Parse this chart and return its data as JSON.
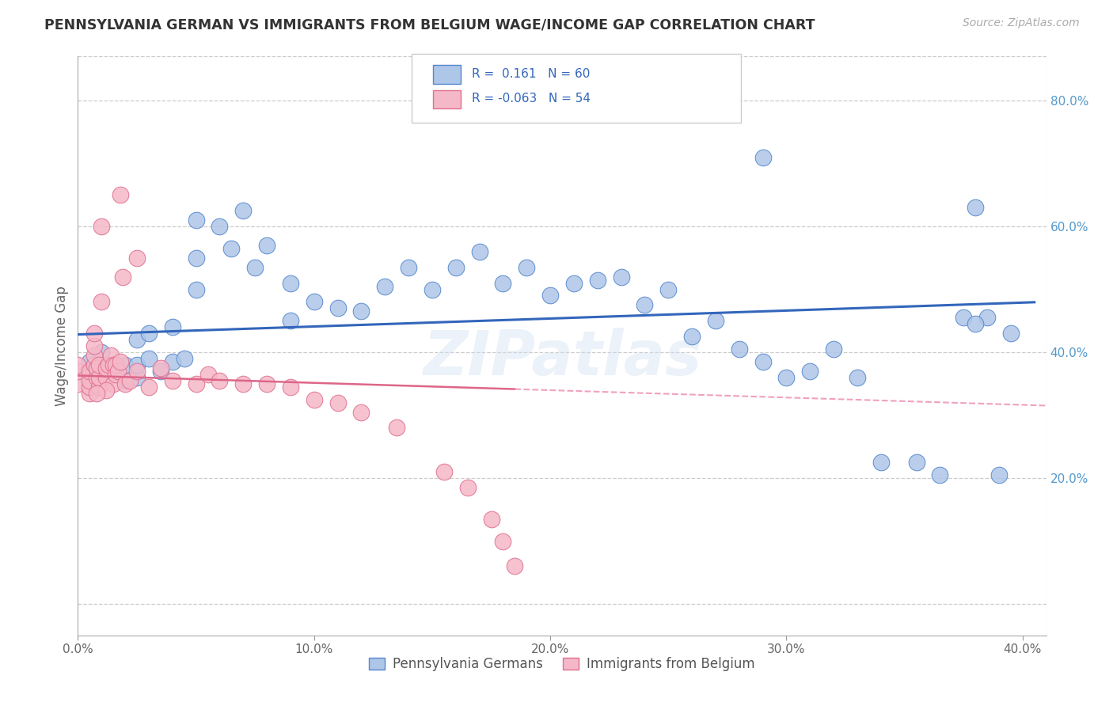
{
  "title": "PENNSYLVANIA GERMAN VS IMMIGRANTS FROM BELGIUM WAGE/INCOME GAP CORRELATION CHART",
  "source": "Source: ZipAtlas.com",
  "ylabel": "Wage/Income Gap",
  "xlim": [
    0.0,
    0.41
  ],
  "ylim": [
    -0.05,
    0.87
  ],
  "xticks": [
    0.0,
    0.1,
    0.2,
    0.3,
    0.4
  ],
  "xtick_labels": [
    "0.0%",
    "10.0%",
    "20.0%",
    "30.0%",
    "40.0%"
  ],
  "ytick_rights": [
    0.2,
    0.4,
    0.6,
    0.8
  ],
  "ytick_right_labels": [
    "20.0%",
    "40.0%",
    "60.0%",
    "80.0%"
  ],
  "blue_R": 0.161,
  "blue_N": 60,
  "pink_R": -0.063,
  "pink_N": 54,
  "legend_label_blue": "Pennsylvania Germans",
  "legend_label_pink": "Immigrants from Belgium",
  "blue_fill": "#aec6e8",
  "blue_edge": "#5588cc",
  "pink_fill": "#f5b8c8",
  "pink_edge": "#e07090",
  "blue_line_color": "#3366bb",
  "pink_solid_color": "#dd6688",
  "pink_dash_color": "#f0a0c0",
  "watermark": "ZIPatlas",
  "blue_x": [
    0.005,
    0.005,
    0.01,
    0.01,
    0.015,
    0.02,
    0.02,
    0.025,
    0.025,
    0.025,
    0.03,
    0.03,
    0.035,
    0.04,
    0.04,
    0.045,
    0.05,
    0.05,
    0.05,
    0.06,
    0.065,
    0.07,
    0.075,
    0.08,
    0.09,
    0.09,
    0.1,
    0.11,
    0.12,
    0.13,
    0.14,
    0.15,
    0.16,
    0.17,
    0.18,
    0.19,
    0.2,
    0.21,
    0.22,
    0.23,
    0.24,
    0.25,
    0.26,
    0.27,
    0.28,
    0.29,
    0.3,
    0.31,
    0.32,
    0.33,
    0.34,
    0.355,
    0.365,
    0.375,
    0.38,
    0.385,
    0.39,
    0.395,
    0.29,
    0.38
  ],
  "blue_y": [
    0.355,
    0.385,
    0.37,
    0.4,
    0.37,
    0.355,
    0.38,
    0.36,
    0.38,
    0.42,
    0.39,
    0.43,
    0.37,
    0.385,
    0.44,
    0.39,
    0.5,
    0.55,
    0.61,
    0.6,
    0.565,
    0.625,
    0.535,
    0.57,
    0.51,
    0.45,
    0.48,
    0.47,
    0.465,
    0.505,
    0.535,
    0.5,
    0.535,
    0.56,
    0.51,
    0.535,
    0.49,
    0.51,
    0.515,
    0.52,
    0.475,
    0.5,
    0.425,
    0.45,
    0.405,
    0.385,
    0.36,
    0.37,
    0.405,
    0.36,
    0.225,
    0.225,
    0.205,
    0.455,
    0.63,
    0.455,
    0.205,
    0.43,
    0.71,
    0.445
  ],
  "pink_x": [
    0.0,
    0.0,
    0.0,
    0.005,
    0.005,
    0.005,
    0.005,
    0.007,
    0.007,
    0.007,
    0.007,
    0.008,
    0.008,
    0.009,
    0.009,
    0.009,
    0.01,
    0.01,
    0.012,
    0.012,
    0.013,
    0.014,
    0.015,
    0.015,
    0.016,
    0.016,
    0.017,
    0.018,
    0.019,
    0.02,
    0.022,
    0.025,
    0.03,
    0.035,
    0.04,
    0.05,
    0.055,
    0.06,
    0.07,
    0.08,
    0.09,
    0.1,
    0.11,
    0.12,
    0.135,
    0.155,
    0.165,
    0.175,
    0.18,
    0.185,
    0.025,
    0.018,
    0.012,
    0.008
  ],
  "pink_y": [
    0.35,
    0.37,
    0.38,
    0.335,
    0.345,
    0.355,
    0.37,
    0.38,
    0.395,
    0.41,
    0.43,
    0.36,
    0.375,
    0.345,
    0.36,
    0.38,
    0.48,
    0.6,
    0.36,
    0.375,
    0.38,
    0.395,
    0.35,
    0.38,
    0.365,
    0.38,
    0.37,
    0.385,
    0.52,
    0.35,
    0.355,
    0.37,
    0.345,
    0.375,
    0.355,
    0.35,
    0.365,
    0.355,
    0.35,
    0.35,
    0.345,
    0.325,
    0.32,
    0.305,
    0.28,
    0.21,
    0.185,
    0.135,
    0.1,
    0.06,
    0.55,
    0.65,
    0.34,
    0.335
  ]
}
